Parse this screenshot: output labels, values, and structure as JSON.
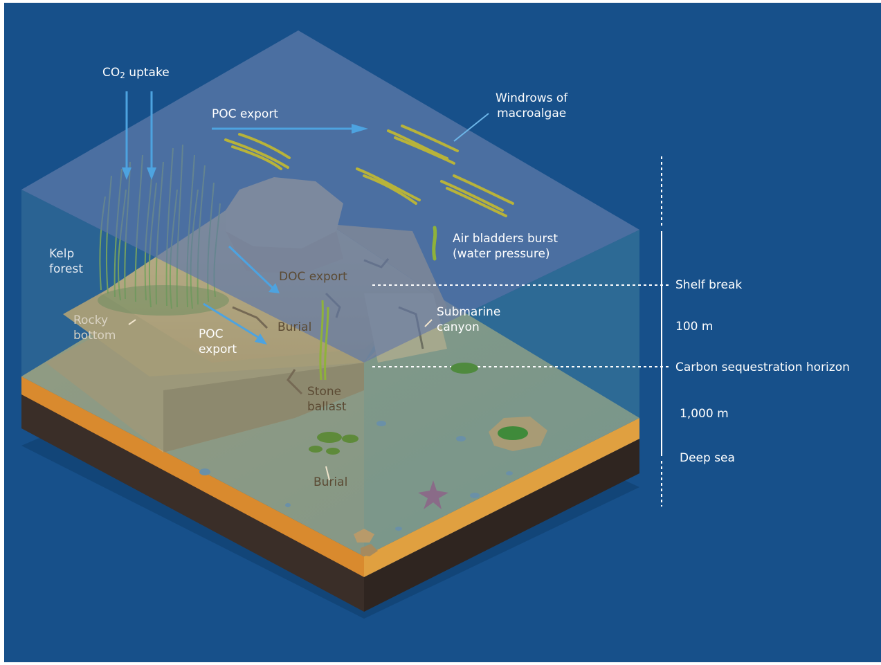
{
  "labels": {
    "co2_prefix": "CO",
    "co2_sub": "2",
    "co2_suffix": " uptake",
    "poc_export_surface": "POC export",
    "windrows": "Windrows of\nmacroalgae",
    "air_bladders": "Air bladders burst\n(water pressure)",
    "kelp_forest": "Kelp\nforest",
    "doc_export": "DOC export",
    "shelf_break": "Shelf break",
    "depth_100m": "100 m",
    "rocky_bottom": "Rocky\nbottom",
    "burial_upper": "Burial",
    "submarine_canyon": "Submarine\ncanyon",
    "poc_export_slope": "POC\nexport",
    "carbon_horizon": "Carbon sequestration horizon",
    "stone_ballast": "Stone\nballast",
    "depth_1000m": "1,000 m",
    "deep_sea": "Deep sea",
    "burial_lower": "Burial"
  },
  "colors": {
    "background": "#17508a",
    "surface_water": "#5a79a8",
    "water_side": "#4f8aa0",
    "sand": "#e8b86a",
    "sediment_orange": "#d98a2e",
    "bedrock": "#3a2e28",
    "arrow": "#4da3e0",
    "kelp": "#8fb23a"
  }
}
